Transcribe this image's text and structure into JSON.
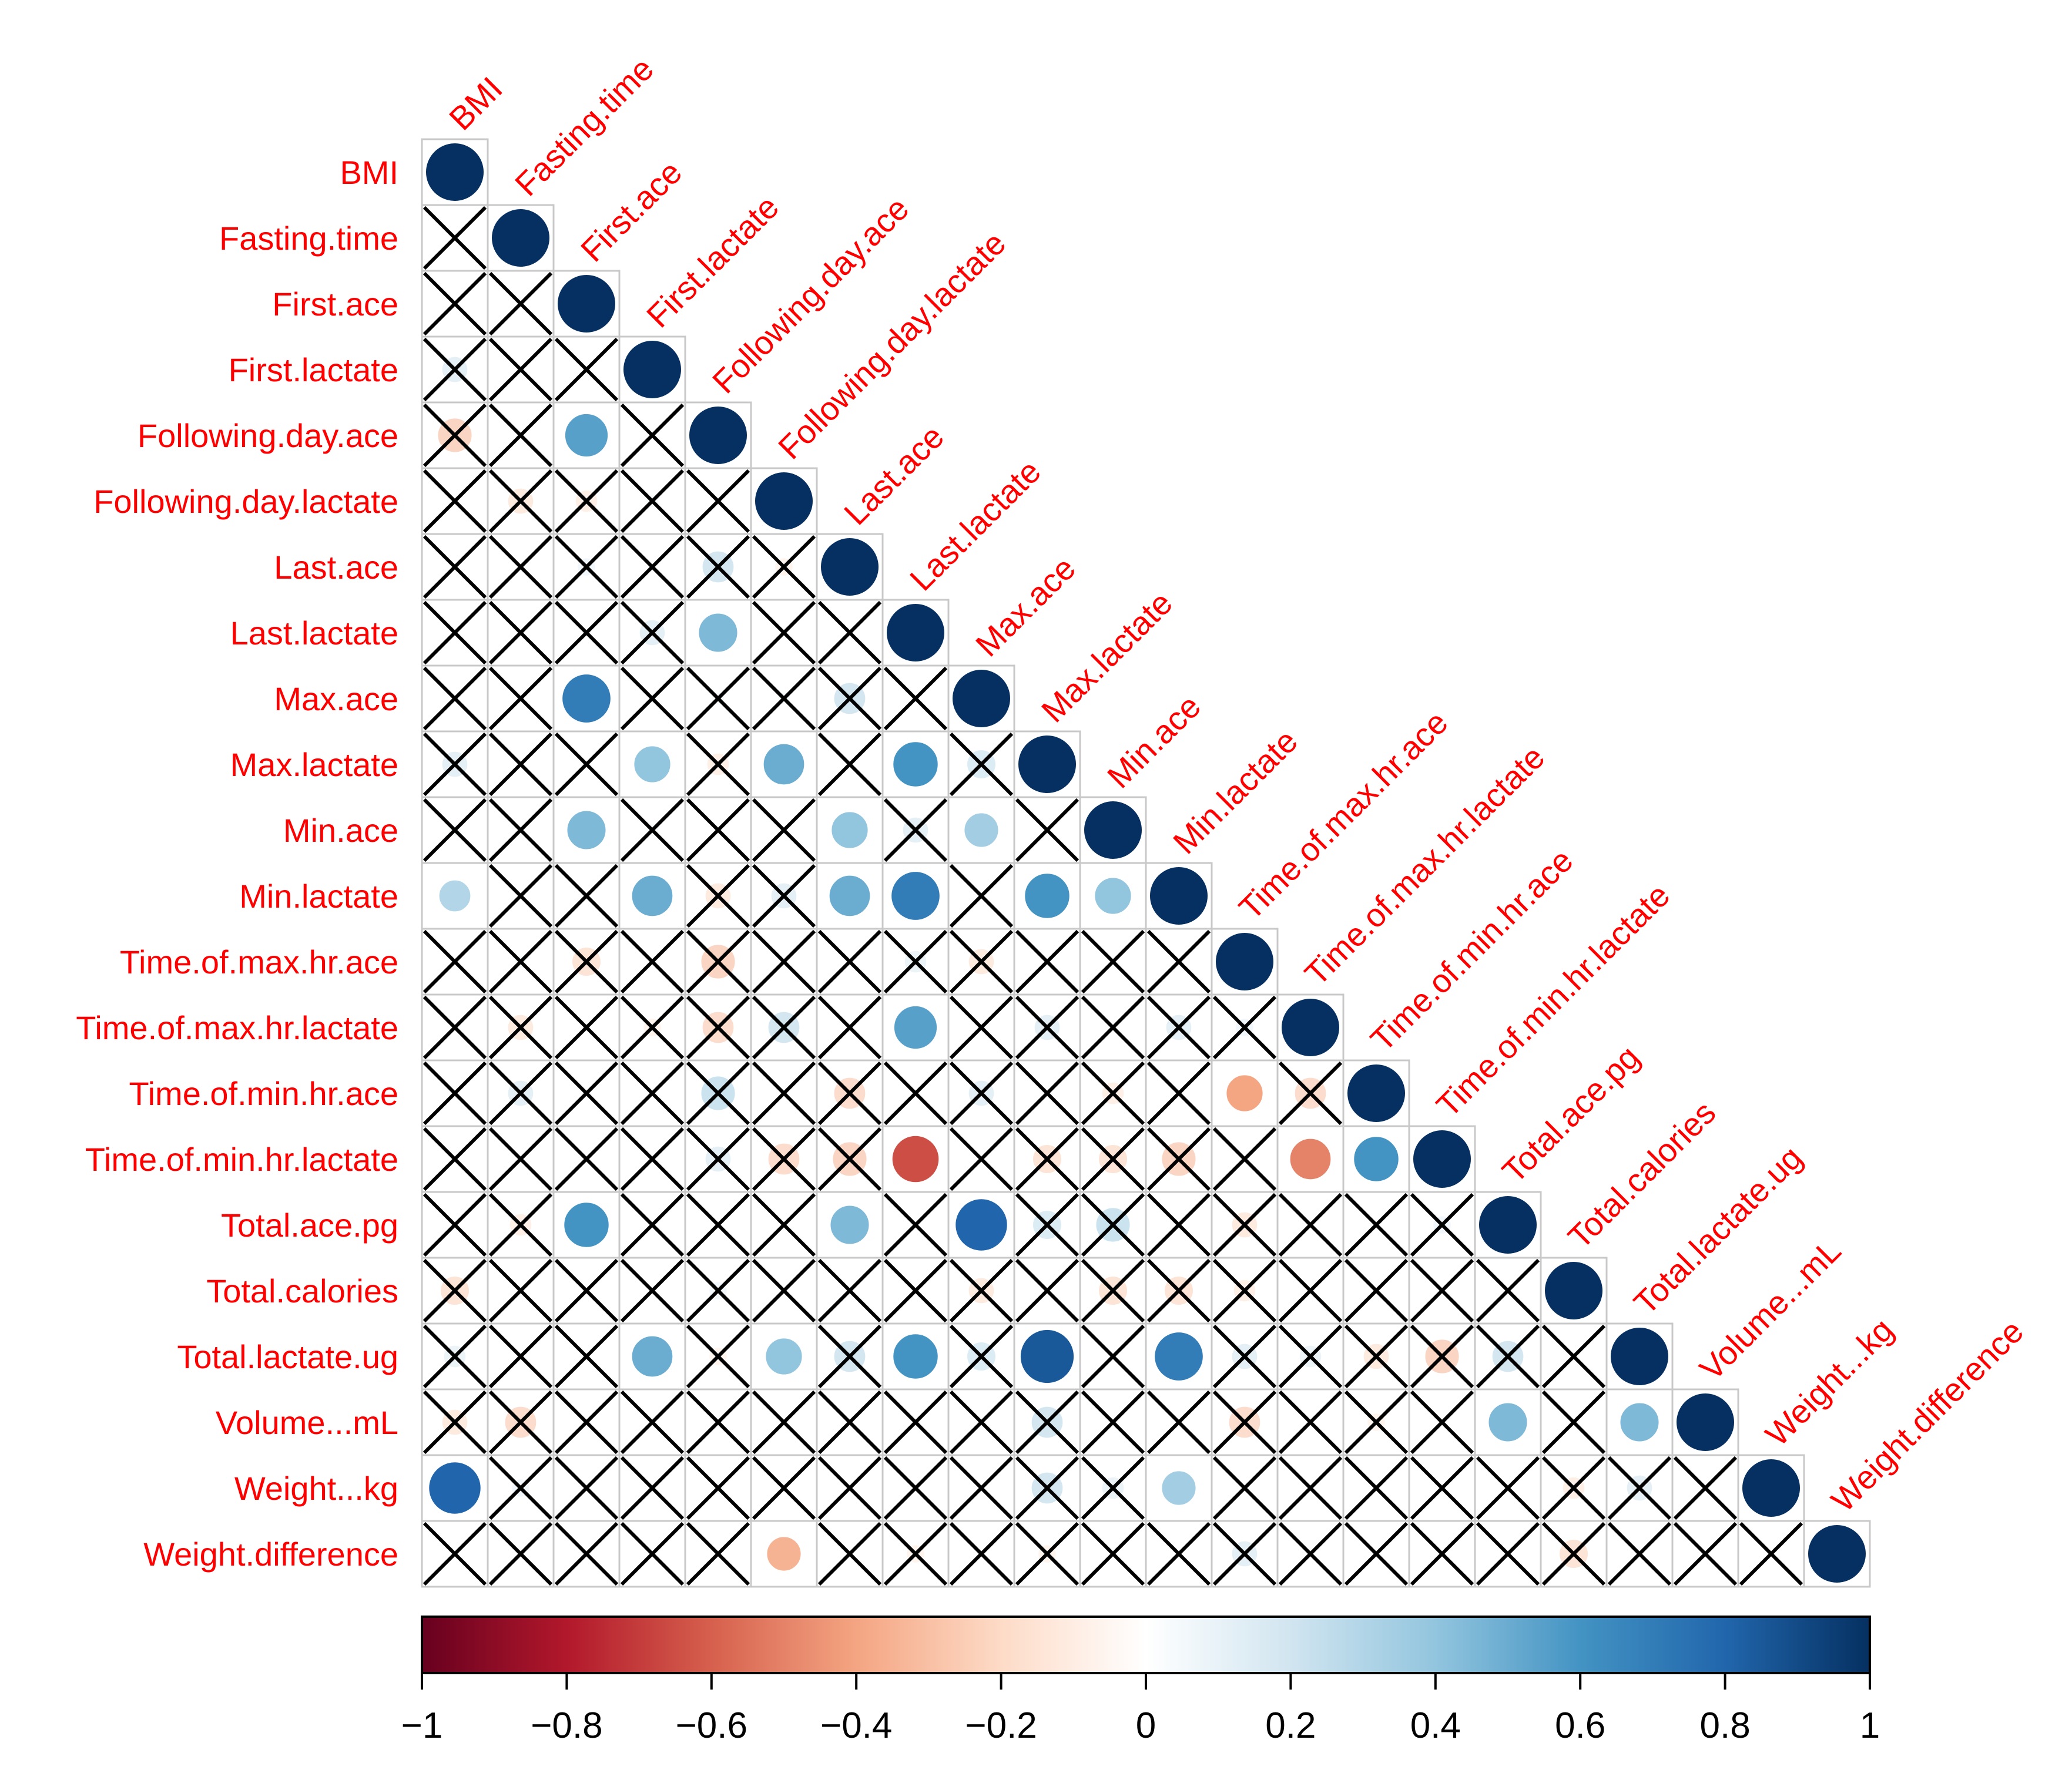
{
  "chart_data": {
    "type": "heatmap",
    "style": "lower-triangular correlation plot, circles sized and colored by correlation, crosses mark non-significant cells",
    "variables": [
      "BMI",
      "Fasting.time",
      "First.ace",
      "First.lactate",
      "Following.day.ace",
      "Following.day.lactate",
      "Last.ace",
      "Last.lactate",
      "Max.ace",
      "Max.lactate",
      "Min.ace",
      "Min.lactate",
      "Time.of.max.hr.ace",
      "Time.of.max.hr.lactate",
      "Time.of.min.hr.ace",
      "Time.of.min.hr.lactate",
      "Total.ace.pg",
      "Total.calories",
      "Total.lactate.ug",
      "Volume...mL",
      "Weight...kg",
      "Weight.difference"
    ],
    "significant_cells": [
      [
        4,
        2,
        0.55
      ],
      [
        7,
        4,
        0.45
      ],
      [
        8,
        2,
        0.7
      ],
      [
        9,
        3,
        0.4
      ],
      [
        9,
        5,
        0.5
      ],
      [
        9,
        7,
        0.6
      ],
      [
        10,
        2,
        0.45
      ],
      [
        10,
        6,
        0.4
      ],
      [
        10,
        8,
        0.35
      ],
      [
        11,
        0,
        0.3
      ],
      [
        11,
        3,
        0.5
      ],
      [
        11,
        6,
        0.5
      ],
      [
        11,
        7,
        0.7
      ],
      [
        11,
        9,
        0.6
      ],
      [
        11,
        10,
        0.4
      ],
      [
        13,
        7,
        0.55
      ],
      [
        14,
        12,
        -0.4
      ],
      [
        15,
        7,
        -0.65
      ],
      [
        15,
        13,
        -0.5
      ],
      [
        15,
        14,
        0.6
      ],
      [
        16,
        2,
        0.6
      ],
      [
        16,
        6,
        0.45
      ],
      [
        16,
        8,
        0.8
      ],
      [
        18,
        3,
        0.5
      ],
      [
        18,
        5,
        0.4
      ],
      [
        18,
        7,
        0.6
      ],
      [
        18,
        9,
        0.85
      ],
      [
        18,
        11,
        0.7
      ],
      [
        19,
        16,
        0.45
      ],
      [
        19,
        18,
        0.45
      ],
      [
        20,
        0,
        0.8
      ],
      [
        20,
        11,
        0.35
      ],
      [
        21,
        5,
        -0.35
      ]
    ],
    "nonsignificant_cells": [
      [
        3,
        0,
        0.2
      ],
      [
        4,
        0,
        -0.35
      ],
      [
        5,
        1,
        -0.2
      ],
      [
        5,
        2,
        -0.15
      ],
      [
        5,
        3,
        0.05
      ],
      [
        6,
        2,
        0.1
      ],
      [
        6,
        4,
        0.3
      ],
      [
        6,
        5,
        -0.1
      ],
      [
        7,
        3,
        0.2
      ],
      [
        7,
        4,
        -0.2
      ],
      [
        8,
        4,
        0.05
      ],
      [
        8,
        5,
        0.05
      ],
      [
        8,
        6,
        0.3
      ],
      [
        9,
        0,
        0.2
      ],
      [
        9,
        4,
        -0.15
      ],
      [
        9,
        8,
        0.25
      ],
      [
        10,
        0,
        0.05
      ],
      [
        10,
        3,
        0.05
      ],
      [
        10,
        7,
        0.2
      ],
      [
        11,
        4,
        -0.2
      ],
      [
        11,
        5,
        0.2
      ],
      [
        12,
        1,
        0.05
      ],
      [
        12,
        2,
        -0.25
      ],
      [
        12,
        4,
        -0.35
      ],
      [
        12,
        7,
        0.15
      ],
      [
        12,
        8,
        -0.2
      ],
      [
        13,
        1,
        -0.2
      ],
      [
        13,
        3,
        -0.1
      ],
      [
        13,
        4,
        -0.3
      ],
      [
        13,
        5,
        0.3
      ],
      [
        13,
        9,
        0.2
      ],
      [
        13,
        11,
        0.2
      ],
      [
        13,
        12,
        0.1
      ],
      [
        14,
        1,
        0.2
      ],
      [
        14,
        4,
        0.35
      ],
      [
        14,
        6,
        -0.3
      ],
      [
        14,
        8,
        0.2
      ],
      [
        14,
        10,
        -0.15
      ],
      [
        14,
        13,
        -0.3
      ],
      [
        15,
        4,
        0.2
      ],
      [
        15,
        5,
        -0.3
      ],
      [
        15,
        6,
        -0.35
      ],
      [
        15,
        9,
        -0.25
      ],
      [
        15,
        10,
        -0.25
      ],
      [
        15,
        11,
        -0.35
      ],
      [
        16,
        1,
        -0.15
      ],
      [
        16,
        9,
        0.25
      ],
      [
        16,
        10,
        0.35
      ],
      [
        16,
        12,
        -0.2
      ],
      [
        16,
        15,
        0.1
      ],
      [
        17,
        0,
        -0.25
      ],
      [
        17,
        4,
        0.1
      ],
      [
        17,
        8,
        -0.2
      ],
      [
        17,
        10,
        -0.25
      ],
      [
        17,
        11,
        -0.25
      ],
      [
        17,
        12,
        -0.15
      ],
      [
        18,
        0,
        0.15
      ],
      [
        18,
        4,
        -0.1
      ],
      [
        18,
        6,
        0.3
      ],
      [
        18,
        8,
        0.25
      ],
      [
        18,
        12,
        0.2
      ],
      [
        18,
        13,
        0.15
      ],
      [
        18,
        14,
        -0.2
      ],
      [
        18,
        15,
        -0.35
      ],
      [
        18,
        16,
        0.3
      ],
      [
        19,
        0,
        -0.2
      ],
      [
        19,
        1,
        -0.3
      ],
      [
        19,
        9,
        0.3
      ],
      [
        19,
        12,
        -0.3
      ],
      [
        19,
        14,
        -0.1
      ],
      [
        20,
        1,
        0.1
      ],
      [
        20,
        4,
        0.05
      ],
      [
        20,
        9,
        0.3
      ],
      [
        20,
        10,
        0.15
      ],
      [
        20,
        17,
        -0.15
      ],
      [
        20,
        18,
        0.2
      ],
      [
        21,
        7,
        -0.1
      ],
      [
        21,
        9,
        -0.1
      ],
      [
        21,
        12,
        0.2
      ],
      [
        21,
        17,
        -0.25
      ]
    ],
    "colorbar": {
      "range": [
        -1,
        1
      ],
      "ticks": [
        -1,
        -0.8,
        -0.6,
        -0.4,
        -0.2,
        0,
        0.2,
        0.4,
        0.6,
        0.8,
        1
      ],
      "tick_labels": [
        "−1",
        "−0.8",
        "−0.6",
        "−0.4",
        "−0.2",
        "0",
        "0.2",
        "0.4",
        "0.6",
        "0.8",
        "1"
      ],
      "colors": [
        "#67001f",
        "#b2182b",
        "#d6604d",
        "#f4a582",
        "#fddbc7",
        "#ffffff",
        "#d1e5f0",
        "#92c5de",
        "#4393c3",
        "#2166ac",
        "#053061"
      ]
    },
    "label_color": "#ff0000"
  }
}
